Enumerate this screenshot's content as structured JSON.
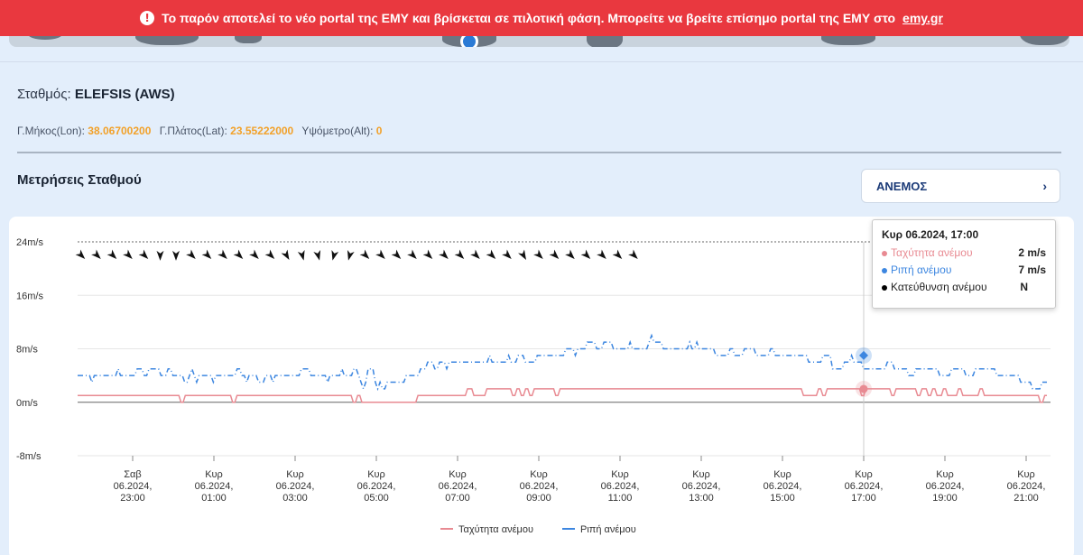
{
  "banner": {
    "icon": "info-icon",
    "text": "Το παρόν αποτελεί το νέο portal της ΕΜΥ και βρίσκεται σε πιλοτική φάση. Μπορείτε να βρείτε επίσημο portal της ΕΜΥ στο",
    "link": "emy.gr",
    "color": "#e9383f"
  },
  "station": {
    "label": "Σταθμός:",
    "name": "ELEFSIS (AWS)",
    "lon_label": "Γ.Μήκος(Lon):",
    "lon": "38.06700200",
    "lat_label": "Γ.Πλάτος(Lat):",
    "lat": "23.55222000",
    "alt_label": "Υψόμετρο(Alt):",
    "alt": "0"
  },
  "measurements": {
    "title": "Μετρήσεις Σταθμού",
    "selector_value": "ΑΝΕΜΟΣ",
    "selector_icon": "chevron-right-icon"
  },
  "tooltip": {
    "title": "Κυρ 06.2024, 17:00",
    "rows": [
      {
        "label": "Ταχύτητα ανέμου",
        "value": "2 m/s",
        "color": "#e88a92"
      },
      {
        "label": "Ριπή ανέμου",
        "value": "7 m/s",
        "color": "#3c86e0"
      },
      {
        "label": "Κατεύθυνση ανέμου",
        "value": "N",
        "color": "#000000"
      }
    ]
  },
  "chart_data": {
    "type": "line",
    "ylim": [
      -8,
      24
    ],
    "yticks": [
      24,
      16,
      8,
      0,
      -8
    ],
    "ytick_labels": [
      "24m/s",
      "16m/s",
      "8m/s",
      "0m/s",
      "-8m/s"
    ],
    "xlim_hours": [
      22,
      21.5
    ],
    "xticks": [
      {
        "day": "Σαβ",
        "date": "06.2024,",
        "time": "23:00"
      },
      {
        "day": "Κυρ",
        "date": "06.2024,",
        "time": "01:00"
      },
      {
        "day": "Κυρ",
        "date": "06.2024,",
        "time": "03:00"
      },
      {
        "day": "Κυρ",
        "date": "06.2024,",
        "time": "05:00"
      },
      {
        "day": "Κυρ",
        "date": "06.2024,",
        "time": "07:00"
      },
      {
        "day": "Κυρ",
        "date": "06.2024,",
        "time": "09:00"
      },
      {
        "day": "Κυρ",
        "date": "06.2024,",
        "time": "11:00"
      },
      {
        "day": "Κυρ",
        "date": "06.2024,",
        "time": "13:00"
      },
      {
        "day": "Κυρ",
        "date": "06.2024,",
        "time": "15:00"
      },
      {
        "day": "Κυρ",
        "date": "06.2024,",
        "time": "17:00"
      },
      {
        "day": "Κυρ",
        "date": "06.2024,",
        "time": "19:00"
      },
      {
        "day": "Κυρ",
        "date": "06.2024,",
        "time": "21:00"
      }
    ],
    "series": [
      {
        "name": "Ταχύτητα ανέμου",
        "color": "#e88a92",
        "values": [
          1,
          1,
          1,
          1,
          1,
          1,
          1,
          1,
          1,
          1,
          1,
          1,
          1,
          1,
          1,
          1,
          1,
          1,
          1,
          1,
          1,
          1,
          1,
          1,
          1,
          1,
          1,
          1,
          1,
          1,
          1,
          1,
          1,
          1,
          1,
          1,
          1,
          1,
          1,
          1,
          1,
          1,
          1,
          1,
          1,
          1,
          1,
          1,
          0,
          0,
          1,
          1,
          1,
          1,
          1,
          1,
          1,
          1,
          1,
          1,
          1,
          1,
          1,
          1,
          1,
          1,
          1,
          1,
          1,
          1,
          1,
          1,
          0,
          0,
          1,
          1,
          1,
          1,
          1,
          1,
          1,
          1,
          1,
          1,
          1,
          1,
          1,
          1,
          1,
          1,
          1,
          1,
          1,
          1,
          1,
          1,
          1,
          1,
          1,
          1,
          1,
          1,
          1,
          1,
          1,
          1,
          1,
          1,
          1,
          1,
          1,
          1,
          1,
          1,
          1,
          1,
          1,
          1,
          1,
          1,
          1,
          1,
          1,
          1,
          1,
          1,
          1,
          1,
          0,
          0,
          1,
          1,
          0,
          0,
          0,
          0,
          0,
          0,
          0,
          0,
          0,
          0,
          0,
          0,
          0,
          0,
          0,
          0,
          0,
          0,
          0,
          0,
          0,
          0,
          0,
          0,
          0,
          0,
          1,
          1,
          1,
          1,
          1,
          1,
          1,
          1,
          1,
          1,
          1,
          1,
          1,
          1,
          1,
          1,
          1,
          1,
          1,
          1,
          1,
          1,
          1,
          2,
          2,
          2,
          1,
          1,
          1,
          1,
          1,
          1,
          2,
          2,
          2,
          2,
          2,
          2,
          2,
          2,
          2,
          2,
          2,
          2,
          1,
          1,
          2,
          2,
          1,
          1,
          2,
          2,
          1,
          1,
          2,
          2,
          2,
          2,
          2,
          2,
          2,
          2,
          2,
          2,
          1,
          1,
          2,
          2,
          2,
          2,
          2,
          2,
          2,
          2,
          2,
          2,
          2,
          2,
          2,
          2,
          2,
          2,
          2,
          2,
          2,
          2,
          2,
          2,
          2,
          2,
          2,
          2,
          2,
          2,
          2,
          2,
          2,
          2,
          2,
          2,
          2,
          2,
          2,
          2,
          2,
          2,
          2,
          2,
          2,
          2,
          2,
          2,
          2,
          2,
          2,
          2,
          2,
          2,
          2,
          2,
          2,
          2,
          2,
          2,
          2,
          2,
          2,
          2,
          2,
          2,
          2,
          2,
          2,
          2,
          2,
          2,
          2,
          2,
          2,
          2,
          2,
          2,
          2,
          2,
          2,
          2,
          2,
          2,
          2,
          2,
          2,
          2,
          2,
          2,
          2,
          2,
          2,
          2,
          2,
          2,
          2,
          2,
          2,
          2,
          2,
          2,
          2,
          2,
          2,
          2,
          2,
          2,
          2,
          2,
          2,
          2,
          2,
          2,
          2,
          1,
          1,
          1,
          1,
          1,
          1,
          1,
          2,
          2,
          1,
          1,
          2,
          2,
          2,
          2,
          2,
          2,
          2,
          2,
          2,
          2,
          2,
          2,
          2,
          2,
          2,
          2,
          1,
          1,
          2,
          2,
          2,
          2,
          2,
          2,
          2,
          2,
          2,
          2,
          2,
          2,
          1,
          1,
          2,
          2,
          2,
          2,
          2,
          2,
          2,
          2,
          2,
          2,
          1,
          1,
          2,
          2,
          2,
          1,
          1,
          2,
          2,
          1,
          1,
          1,
          2,
          2,
          1,
          1,
          1,
          1,
          1,
          2,
          2,
          1,
          1,
          1,
          1,
          1,
          1,
          1,
          1,
          2,
          2,
          1,
          1,
          1,
          1,
          1,
          1,
          1,
          1,
          1,
          1,
          1,
          1,
          1,
          1,
          1,
          1,
          1,
          1,
          1,
          1,
          1,
          1,
          1,
          1,
          1,
          1,
          0,
          0,
          1,
          1
        ]
      },
      {
        "name": "Ριπή ανέμου",
        "color": "#3c86e0",
        "values": [
          4,
          4,
          4,
          4,
          4,
          4,
          3,
          4,
          4,
          4,
          4,
          4,
          4,
          4,
          4,
          4,
          4,
          5,
          4,
          4,
          4,
          4,
          4,
          4,
          4,
          5,
          5,
          5,
          4,
          4,
          5,
          5,
          5,
          5,
          5,
          4,
          4,
          4,
          5,
          5,
          4,
          4,
          4,
          4,
          4,
          3,
          3,
          4,
          5,
          4,
          3,
          4,
          4,
          4,
          4,
          4,
          4,
          3,
          4,
          4,
          4,
          4,
          4,
          4,
          4,
          4,
          4,
          5,
          5,
          4,
          4,
          3,
          4,
          4,
          4,
          4,
          3,
          3,
          3,
          4,
          4,
          4,
          3,
          4,
          4,
          4,
          4,
          4,
          4,
          4,
          4,
          4,
          4,
          4,
          5,
          5,
          5,
          5,
          4,
          4,
          4,
          4,
          4,
          4,
          4,
          3,
          4,
          4,
          4,
          4,
          4,
          5,
          4,
          4,
          4,
          4,
          5,
          5,
          4,
          3,
          2,
          3,
          5,
          5,
          5,
          3,
          2,
          3,
          2,
          2,
          3,
          3,
          3,
          3,
          3,
          3,
          3,
          3,
          4,
          4,
          4,
          4,
          4,
          4,
          5,
          5,
          5,
          6,
          6,
          6,
          5,
          5,
          6,
          6,
          6,
          5,
          6,
          6,
          6,
          6,
          6,
          6,
          6,
          6,
          6,
          6,
          6,
          6,
          6,
          6,
          6,
          6,
          6,
          7,
          6,
          6,
          6,
          6,
          6,
          6,
          6,
          7,
          6,
          6,
          6,
          7,
          7,
          7,
          6,
          6,
          6,
          6,
          6,
          7,
          7,
          7,
          7,
          7,
          7,
          7,
          7,
          7,
          7,
          7,
          7,
          8,
          8,
          8,
          8,
          7,
          8,
          8,
          8,
          8,
          9,
          9,
          9,
          9,
          8,
          8,
          8,
          9,
          9,
          9,
          9,
          8,
          8,
          8,
          8,
          8,
          8,
          8,
          9,
          8,
          8,
          8,
          8,
          8,
          8,
          8,
          9,
          10,
          9,
          9,
          9,
          9,
          8,
          8,
          8,
          8,
          8,
          8,
          8,
          8,
          8,
          8,
          8,
          9,
          8,
          8,
          9,
          8,
          8,
          8,
          8,
          8,
          8,
          8,
          7,
          7,
          7,
          7,
          7,
          7,
          8,
          8,
          7,
          7,
          7,
          7,
          8,
          8,
          8,
          8,
          8,
          7,
          7,
          7,
          7,
          7,
          7,
          8,
          8,
          7,
          7,
          7,
          7,
          7,
          7,
          7,
          7,
          7,
          7,
          7,
          7,
          7,
          7,
          6,
          6,
          6,
          6,
          6,
          6,
          7,
          7,
          7,
          7,
          5,
          5,
          5,
          5,
          5,
          6,
          6,
          6,
          7,
          6,
          6,
          6,
          6,
          5,
          5,
          5,
          5,
          5,
          5,
          5,
          5,
          5,
          5,
          6,
          6,
          6,
          5,
          5,
          5,
          5,
          5,
          5,
          4,
          4,
          4,
          5,
          5,
          5,
          5,
          5,
          5,
          5,
          5,
          5,
          5,
          4,
          4,
          4,
          4,
          4,
          5,
          5,
          5,
          5,
          5,
          5,
          4,
          4,
          4,
          4,
          5,
          5,
          5,
          5,
          5,
          5,
          5,
          5,
          5,
          4,
          4,
          4,
          4,
          4,
          4,
          4,
          4,
          4,
          4,
          3,
          3,
          3,
          3,
          3,
          2,
          2,
          2,
          2,
          3,
          3,
          3
        ]
      }
    ],
    "direction_row": {
      "name": "Κατεύθυνση ανέμου",
      "y": 22,
      "count": 36,
      "angles": [
        315,
        315,
        315,
        315,
        315,
        0,
        0,
        315,
        315,
        315,
        315,
        315,
        315,
        330,
        345,
        345,
        15,
        15,
        315,
        315,
        315,
        315,
        315,
        315,
        315,
        315,
        315,
        315,
        330,
        315,
        315,
        315,
        315,
        315,
        315,
        315
      ]
    },
    "legend": [
      "Ταχύτητα ανέμου",
      "Ριπή ανέμου"
    ],
    "legend_position": "bottom",
    "crosshair_at": "17:00",
    "highlight": {
      "speed": 2,
      "gust": 7
    }
  }
}
